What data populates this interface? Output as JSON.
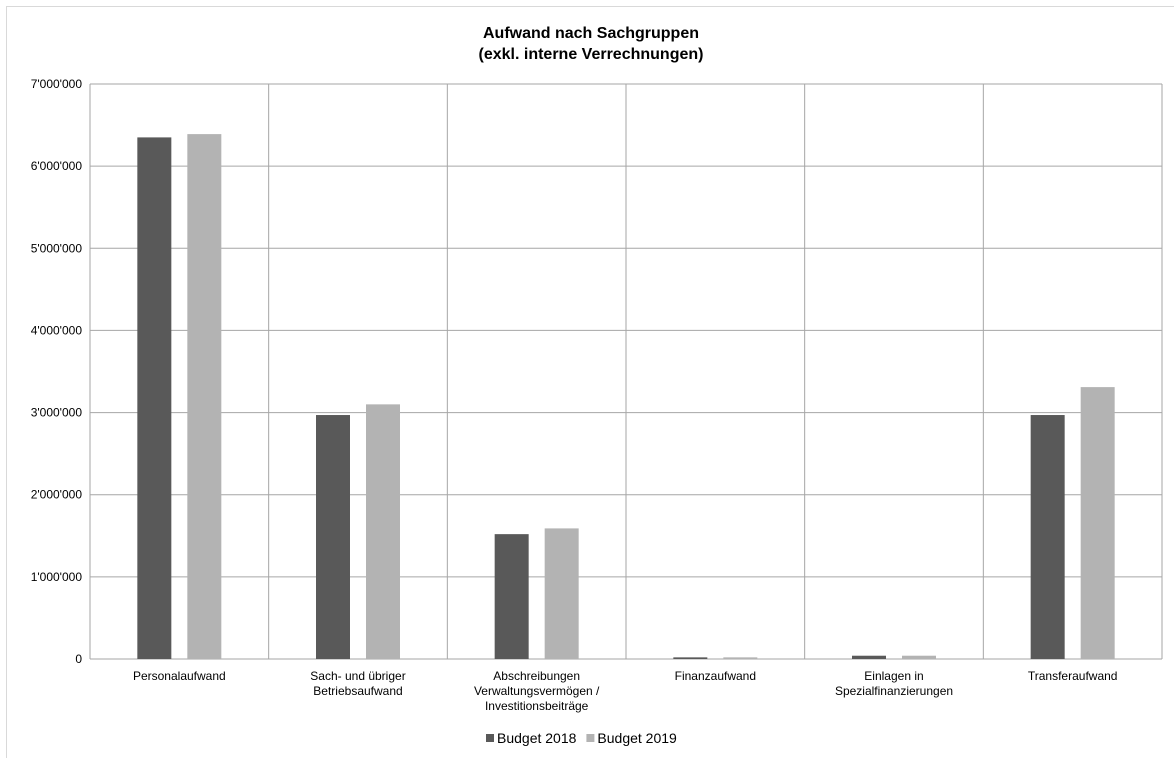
{
  "chart_data": {
    "type": "bar",
    "title": "Aufwand nach Sachgruppen",
    "subtitle": "(exkl. interne Verrechnungen)",
    "categories": [
      [
        "Personalaufwand"
      ],
      [
        "Sach- und übriger",
        "Betriebsaufwand"
      ],
      [
        "Abschreibungen",
        "Verwaltungsvermögen /",
        "Investitionsbeiträge"
      ],
      [
        "Finanzaufwand"
      ],
      [
        "Einlagen in",
        "Spezialfinanzierungen"
      ],
      [
        "Transferaufwand"
      ]
    ],
    "series": [
      {
        "name": "Budget 2018",
        "color": "#595959",
        "values": [
          6350000,
          2970000,
          1520000,
          20000,
          40000,
          2970000
        ]
      },
      {
        "name": "Budget 2019",
        "color": "#b3b3b3",
        "values": [
          6390000,
          3100000,
          1590000,
          20000,
          40000,
          3310000
        ]
      }
    ],
    "ylim": [
      0,
      7000000
    ],
    "yticks": [
      "0",
      "1'000'000",
      "2'000'000",
      "3'000'000",
      "4'000'000",
      "5'000'000",
      "6'000'000",
      "7'000'000"
    ],
    "grid": true,
    "legend_position": "bottom"
  }
}
